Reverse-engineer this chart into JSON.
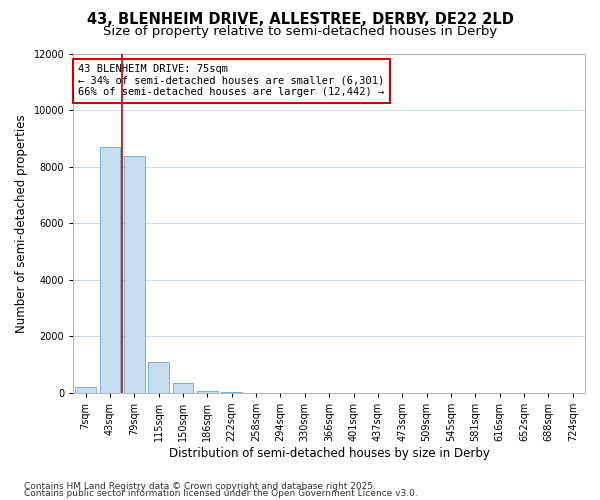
{
  "title_line1": "43, BLENHEIM DRIVE, ALLESTREE, DERBY, DE22 2LD",
  "title_line2": "Size of property relative to semi-detached houses in Derby",
  "xlabel": "Distribution of semi-detached houses by size in Derby",
  "ylabel": "Number of semi-detached properties",
  "categories": [
    "7sqm",
    "43sqm",
    "79sqm",
    "115sqm",
    "150sqm",
    "186sqm",
    "222sqm",
    "258sqm",
    "294sqm",
    "330sqm",
    "366sqm",
    "401sqm",
    "437sqm",
    "473sqm",
    "509sqm",
    "545sqm",
    "581sqm",
    "616sqm",
    "652sqm",
    "688sqm",
    "724sqm"
  ],
  "values": [
    200,
    8700,
    8400,
    1100,
    350,
    80,
    20,
    0,
    0,
    0,
    0,
    0,
    0,
    0,
    0,
    0,
    0,
    0,
    0,
    0,
    0
  ],
  "bar_color": "#c8ddf0",
  "bar_edge_color": "#7ab0d4",
  "vline_x": 1.5,
  "vline_color": "#cc0000",
  "annotation_title": "43 BLENHEIM DRIVE: 75sqm",
  "annotation_line2": "← 34% of semi-detached houses are smaller (6,301)",
  "annotation_line3": "66% of semi-detached houses are larger (12,442) →",
  "annotation_box_color": "#ffffff",
  "annotation_box_edge": "#cc0000",
  "ylim": [
    0,
    12000
  ],
  "yticks": [
    0,
    2000,
    4000,
    6000,
    8000,
    10000,
    12000
  ],
  "footer_line1": "Contains HM Land Registry data © Crown copyright and database right 2025.",
  "footer_line2": "Contains public sector information licensed under the Open Government Licence v3.0.",
  "bg_color": "#ffffff",
  "plot_bg_color": "#ffffff",
  "grid_color": "#d0dce8",
  "title_fontsize": 10.5,
  "subtitle_fontsize": 9.5,
  "tick_fontsize": 7,
  "label_fontsize": 8.5,
  "footer_fontsize": 6.5,
  "annotation_fontsize": 7.5
}
